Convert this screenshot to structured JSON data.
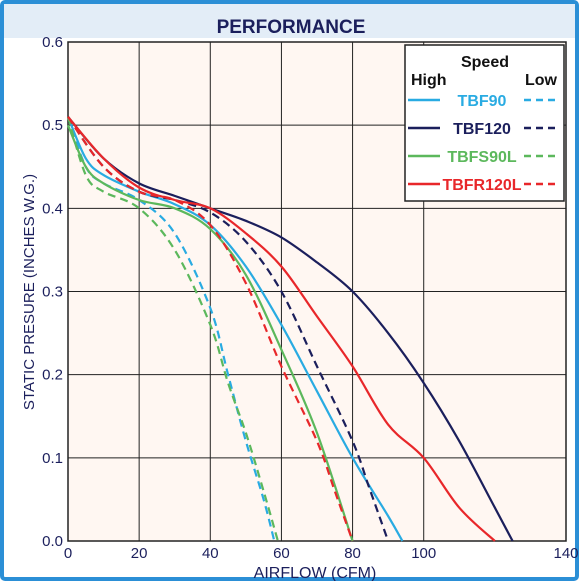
{
  "chart_data": {
    "type": "line",
    "title": "PERFORMANCE",
    "xlabel": "AIRFLOW (CFM)",
    "ylabel": "STATIC PRESURE (INCHES W.G.)",
    "xlim": [
      0,
      140
    ],
    "ylim": [
      0,
      0.6
    ],
    "xticks": [
      "0",
      "20",
      "40",
      "60",
      "80",
      "100",
      "140"
    ],
    "yticks": [
      "0.0",
      "0.1",
      "0.2",
      "0.3",
      "0.4",
      "0.5",
      "0.6"
    ],
    "grid": true,
    "legend": {
      "position": "top-right",
      "title": "Speed",
      "high_label": "High",
      "low_label": "Low"
    },
    "colors": {
      "frame": "#2b8fd6",
      "plot_bg": "#fff7f2",
      "grid": "#222222",
      "title_bg": "#e3edf7"
    },
    "series": [
      {
        "name": "TBF90",
        "color": "#29abe2",
        "high": [
          [
            0,
            0.51
          ],
          [
            5,
            0.46
          ],
          [
            10,
            0.44
          ],
          [
            20,
            0.42
          ],
          [
            30,
            0.405
          ],
          [
            40,
            0.38
          ],
          [
            50,
            0.33
          ],
          [
            60,
            0.26
          ],
          [
            70,
            0.18
          ],
          [
            80,
            0.1
          ],
          [
            90,
            0.03
          ],
          [
            94,
            0
          ]
        ],
        "low": [
          [
            0,
            0.51
          ],
          [
            5,
            0.45
          ],
          [
            10,
            0.43
          ],
          [
            20,
            0.41
          ],
          [
            30,
            0.37
          ],
          [
            40,
            0.28
          ],
          [
            45,
            0.2
          ],
          [
            50,
            0.12
          ],
          [
            55,
            0.05
          ],
          [
            58,
            0
          ]
        ]
      },
      {
        "name": "TBF120",
        "color": "#1b1f5c",
        "high": [
          [
            0,
            0.51
          ],
          [
            10,
            0.46
          ],
          [
            20,
            0.43
          ],
          [
            30,
            0.415
          ],
          [
            40,
            0.4
          ],
          [
            50,
            0.385
          ],
          [
            60,
            0.365
          ],
          [
            70,
            0.335
          ],
          [
            80,
            0.3
          ],
          [
            90,
            0.25
          ],
          [
            100,
            0.19
          ],
          [
            110,
            0.12
          ],
          [
            120,
            0.04
          ],
          [
            125,
            0
          ]
        ],
        "low": [
          [
            0,
            0.51
          ],
          [
            10,
            0.45
          ],
          [
            20,
            0.42
          ],
          [
            30,
            0.41
          ],
          [
            40,
            0.395
          ],
          [
            50,
            0.36
          ],
          [
            60,
            0.3
          ],
          [
            70,
            0.21
          ],
          [
            80,
            0.12
          ],
          [
            85,
            0.06
          ],
          [
            90,
            0
          ]
        ]
      },
      {
        "name": "TBFS90L",
        "color": "#5cb85c",
        "high": [
          [
            0,
            0.5
          ],
          [
            5,
            0.45
          ],
          [
            10,
            0.43
          ],
          [
            20,
            0.41
          ],
          [
            30,
            0.4
          ],
          [
            40,
            0.375
          ],
          [
            50,
            0.32
          ],
          [
            60,
            0.23
          ],
          [
            70,
            0.13
          ],
          [
            80,
            0
          ]
        ],
        "low": [
          [
            0,
            0.51
          ],
          [
            5,
            0.44
          ],
          [
            10,
            0.42
          ],
          [
            20,
            0.4
          ],
          [
            30,
            0.35
          ],
          [
            40,
            0.26
          ],
          [
            45,
            0.19
          ],
          [
            50,
            0.13
          ],
          [
            55,
            0.06
          ],
          [
            59,
            0
          ]
        ]
      },
      {
        "name": "TBFR120L",
        "color": "#e8272a",
        "high": [
          [
            0,
            0.51
          ],
          [
            10,
            0.46
          ],
          [
            20,
            0.425
          ],
          [
            30,
            0.41
          ],
          [
            40,
            0.4
          ],
          [
            50,
            0.37
          ],
          [
            60,
            0.33
          ],
          [
            70,
            0.27
          ],
          [
            80,
            0.21
          ],
          [
            90,
            0.14
          ],
          [
            100,
            0.1
          ],
          [
            110,
            0.04
          ],
          [
            120,
            0
          ]
        ],
        "low": [
          [
            0,
            0.51
          ],
          [
            10,
            0.45
          ],
          [
            20,
            0.42
          ],
          [
            30,
            0.41
          ],
          [
            40,
            0.38
          ],
          [
            50,
            0.31
          ],
          [
            60,
            0.21
          ],
          [
            70,
            0.12
          ],
          [
            75,
            0.06
          ],
          [
            80,
            0
          ]
        ]
      }
    ]
  }
}
